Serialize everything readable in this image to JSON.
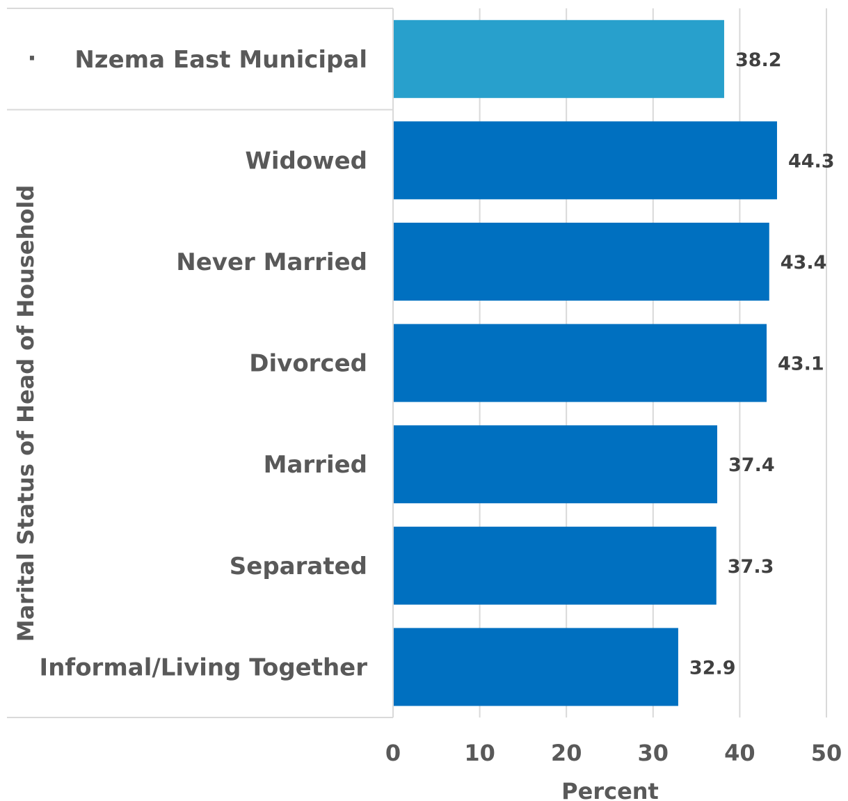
{
  "chart_data": {
    "type": "bar",
    "orientation": "horizontal",
    "groups": [
      {
        "categories": [
          "Nzema East Municipal"
        ],
        "label": "·"
      },
      {
        "categories": [
          "Widowed",
          "Never Married",
          "Divorced",
          "Married",
          "Separated",
          "Informal/Living Together"
        ],
        "label": ""
      }
    ],
    "categories": [
      "Nzema East Municipal",
      "Widowed",
      "Never Married",
      "Divorced",
      "Married",
      "Separated",
      "Informal/Living Together"
    ],
    "values": [
      38.2,
      44.3,
      43.4,
      43.1,
      37.4,
      37.3,
      32.9
    ],
    "value_labels": [
      "38.2",
      "44.3",
      "43.4",
      "43.1",
      "37.4",
      "37.3",
      "32.9"
    ],
    "colors": [
      "#28a0cc",
      "#0070c0",
      "#0070c0",
      "#0070c0",
      "#0070c0",
      "#0070c0",
      "#0070c0"
    ],
    "xlabel": "Percent",
    "ylabel": "Marital Status of Head of Household",
    "xlim": [
      0,
      50
    ],
    "xticks": [
      "0",
      "10",
      "20",
      "30",
      "40",
      "50"
    ],
    "grid": true,
    "legend": "none"
  }
}
